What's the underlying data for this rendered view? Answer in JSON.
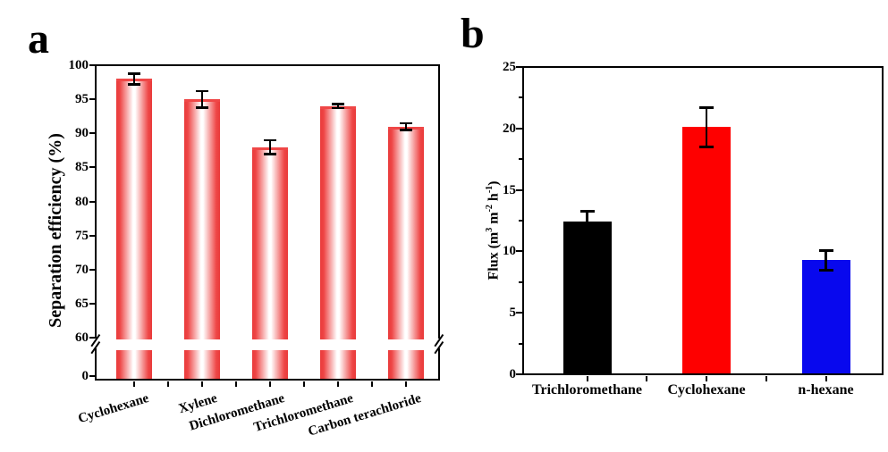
{
  "panels": {
    "a": {
      "letter": "a"
    },
    "b": {
      "letter": "b"
    }
  },
  "chart_data": [
    {
      "id": "a",
      "type": "bar",
      "title": "",
      "ylabel": "Separation efficiency (%)",
      "categories": [
        "Cyclohexane",
        "Xylene",
        "Dichloromethane",
        "Trichloromethane",
        "Carbon terachloride"
      ],
      "values": [
        98,
        95,
        88,
        94,
        91
      ],
      "errors": [
        0.8,
        1.2,
        1.0,
        0.3,
        0.5
      ],
      "yticks": [
        "100",
        "95",
        "90",
        "85",
        "80",
        "75",
        "70",
        "65",
        "60",
        "0"
      ],
      "ytick_values": [
        100,
        95,
        90,
        85,
        80,
        75,
        70,
        65,
        60,
        0
      ],
      "ylim": [
        60,
        100
      ],
      "axis_break": true,
      "axis_break_note": "y-axis broken between 0 and 60",
      "bar_fill": "red-white-red horizontal gradient",
      "bar_edge_color": "#e93b3b",
      "grid": false,
      "legend": null
    },
    {
      "id": "b",
      "type": "bar",
      "title": "",
      "ylabel_plain": "Flux (m3 m-2 h-1)",
      "ylabel_parts": [
        "Flux (m",
        "3",
        " m",
        "-2",
        " h",
        "-1",
        ")"
      ],
      "categories": [
        "Trichloromethane",
        "Cyclohexane",
        "n-hexane"
      ],
      "values": [
        12.4,
        20.1,
        9.3
      ],
      "errors": [
        0.9,
        1.6,
        0.8
      ],
      "colors": [
        "#000000",
        "#fe0000",
        "#0808ee"
      ],
      "yticks": [
        "0",
        "5",
        "10",
        "15",
        "20",
        "25"
      ],
      "ytick_values": [
        0,
        5,
        10,
        15,
        20,
        25
      ],
      "minor_ytick_values": [
        2.5,
        7.5,
        12.5,
        17.5,
        22.5
      ],
      "ylim": [
        0,
        25
      ],
      "grid": false,
      "legend": null
    }
  ],
  "style": {
    "axis_color": "#000000",
    "error_bar_color": "#000000",
    "background": "#ffffff"
  }
}
